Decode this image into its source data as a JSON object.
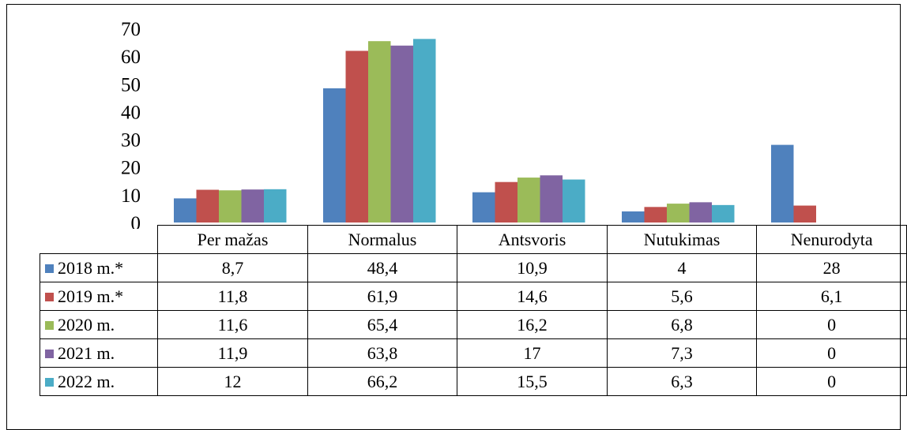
{
  "chart_data": {
    "type": "bar",
    "categories": [
      "Per mažas",
      "Normalus",
      "Antsvoris",
      "Nutukimas",
      "Nenurodyta"
    ],
    "series": [
      {
        "name": "2018 m.*",
        "color": "#4F81BD",
        "values": [
          8.7,
          48.4,
          10.9,
          4,
          28
        ]
      },
      {
        "name": "2019 m.*",
        "color": "#C0504D",
        "values": [
          11.8,
          61.9,
          14.6,
          5.6,
          6.1
        ]
      },
      {
        "name": "2020 m.",
        "color": "#9BBB59",
        "values": [
          11.6,
          65.4,
          16.2,
          6.8,
          0
        ]
      },
      {
        "name": "2021 m.",
        "color": "#8064A2",
        "values": [
          11.9,
          63.8,
          17,
          7.3,
          0
        ]
      },
      {
        "name": "2022 m.",
        "color": "#4BACC6",
        "values": [
          12,
          66.2,
          15.5,
          6.3,
          0
        ]
      }
    ],
    "y_ticks": [
      "0",
      "10",
      "20",
      "30",
      "40",
      "50",
      "60",
      "70"
    ],
    "ylim": [
      0,
      70
    ],
    "grid": false,
    "legend": "data-table"
  },
  "table": {
    "rows": [
      [
        "8,7",
        "48,4",
        "10,9",
        "4",
        "28"
      ],
      [
        "11,8",
        "61,9",
        "14,6",
        "5,6",
        "6,1"
      ],
      [
        "11,6",
        "65,4",
        "16,2",
        "6,8",
        "0"
      ],
      [
        "11,9",
        "63,8",
        "17",
        "7,3",
        "0"
      ],
      [
        "12",
        "66,2",
        "15,5",
        "6,3",
        "0"
      ]
    ]
  }
}
